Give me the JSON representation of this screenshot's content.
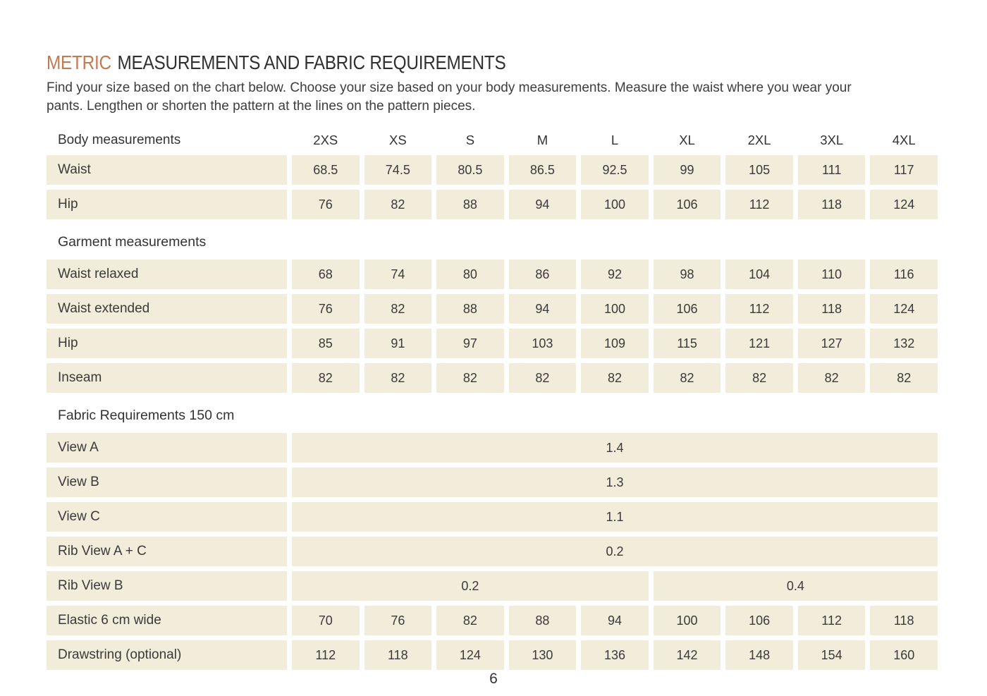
{
  "page": {
    "title_accent": "METRIC",
    "title_rest": "MEASUREMENTS AND FABRIC REQUIREMENTS",
    "intro_line1": "Find your size based on the chart below. Choose your size based on your body measurements. Measure the waist where you wear your",
    "intro_line2": "pants. Lengthen or shorten the pattern at the lines on the pattern pieces.",
    "page_number": "6"
  },
  "colors": {
    "accent": "#c5794f",
    "cell_background": "#f2ecda",
    "text": "#3a3a3a"
  },
  "table": {
    "columns": [
      "2XS",
      "XS",
      "S",
      "M",
      "L",
      "XL",
      "2XL",
      "3XL",
      "4XL"
    ],
    "rows": [
      {
        "type": "header",
        "label": "Body measurements"
      },
      {
        "type": "data",
        "label": "Waist",
        "values": [
          "68.5",
          "74.5",
          "80.5",
          "86.5",
          "92.5",
          "99",
          "105",
          "111",
          "117"
        ]
      },
      {
        "type": "data",
        "label": "Hip",
        "values": [
          "76",
          "82",
          "88",
          "94",
          "100",
          "106",
          "112",
          "118",
          "124"
        ]
      },
      {
        "type": "section",
        "label": "Garment measurements"
      },
      {
        "type": "data",
        "label": "Waist relaxed",
        "values": [
          "68",
          "74",
          "80",
          "86",
          "92",
          "98",
          "104",
          "110",
          "116"
        ]
      },
      {
        "type": "data",
        "label": "Waist extended",
        "values": [
          "76",
          "82",
          "88",
          "94",
          "100",
          "106",
          "112",
          "118",
          "124"
        ]
      },
      {
        "type": "data",
        "label": "Hip",
        "values": [
          "85",
          "91",
          "97",
          "103",
          "109",
          "115",
          "121",
          "127",
          "132"
        ]
      },
      {
        "type": "data",
        "label": "Inseam",
        "values": [
          "82",
          "82",
          "82",
          "82",
          "82",
          "82",
          "82",
          "82",
          "82"
        ]
      },
      {
        "type": "section",
        "label": "Fabric Requirements 150 cm"
      },
      {
        "type": "merged",
        "label": "View A",
        "cells": [
          {
            "value": "1.4",
            "span": 9
          }
        ]
      },
      {
        "type": "merged",
        "label": "View B",
        "cells": [
          {
            "value": "1.3",
            "span": 9
          }
        ]
      },
      {
        "type": "merged",
        "label": "View C",
        "cells": [
          {
            "value": "1.1",
            "span": 9
          }
        ]
      },
      {
        "type": "merged",
        "label": "Rib View A + C",
        "cells": [
          {
            "value": "0.2",
            "span": 9
          }
        ]
      },
      {
        "type": "merged",
        "label": "Rib View B",
        "cells": [
          {
            "value": "0.2",
            "span": 5
          },
          {
            "value": "0.4",
            "span": 4
          }
        ]
      },
      {
        "type": "data",
        "label": "Elastic 6 cm wide",
        "values": [
          "70",
          "76",
          "82",
          "88",
          "94",
          "100",
          "106",
          "112",
          "118"
        ]
      },
      {
        "type": "data",
        "label": "Drawstring (optional)",
        "values": [
          "112",
          "118",
          "124",
          "130",
          "136",
          "142",
          "148",
          "154",
          "160"
        ]
      }
    ]
  }
}
